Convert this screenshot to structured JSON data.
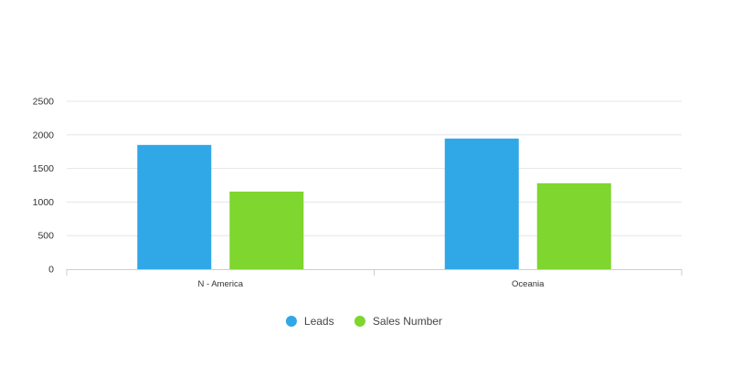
{
  "chart_data": {
    "type": "bar",
    "title": "",
    "xlabel": "",
    "ylabel": "",
    "categories": [
      "N - America",
      "Oceania"
    ],
    "series": [
      {
        "name": "Leads",
        "values": [
          1850,
          1945
        ],
        "color": "#30a8e8"
      },
      {
        "name": "Sales Number",
        "values": [
          1155,
          1280
        ],
        "color": "#7ed62e"
      }
    ],
    "ylim": [
      0,
      2500
    ],
    "yticks": [
      0,
      500,
      1000,
      1500,
      2000,
      2500
    ],
    "grid": true,
    "legend": "bottom-center"
  }
}
